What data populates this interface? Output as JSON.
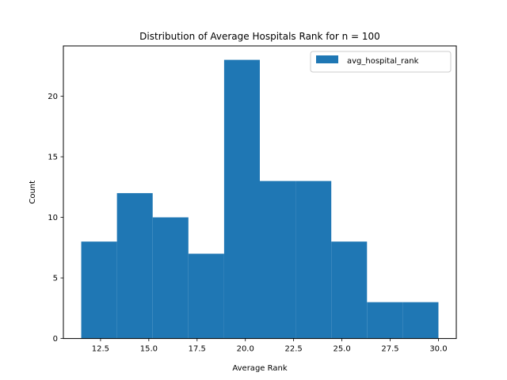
{
  "chart_data": {
    "type": "bar",
    "title": "Distribution of Average Hospitals Rank for n = 100",
    "xlabel": "Average Rank",
    "ylabel": "Count",
    "legend": {
      "label": "avg_hospital_rank",
      "placement": "top-right"
    },
    "color": "#1f77b4",
    "bins": [
      {
        "x0": 11.5,
        "x1": 13.35,
        "count": 8
      },
      {
        "x0": 13.35,
        "x1": 15.2,
        "count": 12
      },
      {
        "x0": 15.2,
        "x1": 17.05,
        "count": 10
      },
      {
        "x0": 17.05,
        "x1": 18.9,
        "count": 7
      },
      {
        "x0": 18.9,
        "x1": 20.75,
        "count": 23
      },
      {
        "x0": 20.75,
        "x1": 22.6,
        "count": 13
      },
      {
        "x0": 22.6,
        "x1": 24.45,
        "count": 13
      },
      {
        "x0": 24.45,
        "x1": 26.3,
        "count": 8
      },
      {
        "x0": 26.3,
        "x1": 28.15,
        "count": 3
      },
      {
        "x0": 28.15,
        "x1": 30.0,
        "count": 3
      }
    ],
    "xlim": [
      10.575,
      30.925
    ],
    "ylim": [
      0,
      24.15
    ],
    "xticks": [
      12.5,
      15.0,
      17.5,
      20.0,
      22.5,
      25.0,
      27.5,
      30.0
    ],
    "xtick_labels": [
      "12.5",
      "15.0",
      "17.5",
      "20.0",
      "22.5",
      "25.0",
      "27.5",
      "30.0"
    ],
    "yticks": [
      0,
      5,
      10,
      15,
      20
    ],
    "ytick_labels": [
      "0",
      "5",
      "10",
      "15",
      "20"
    ],
    "grid": false
  }
}
